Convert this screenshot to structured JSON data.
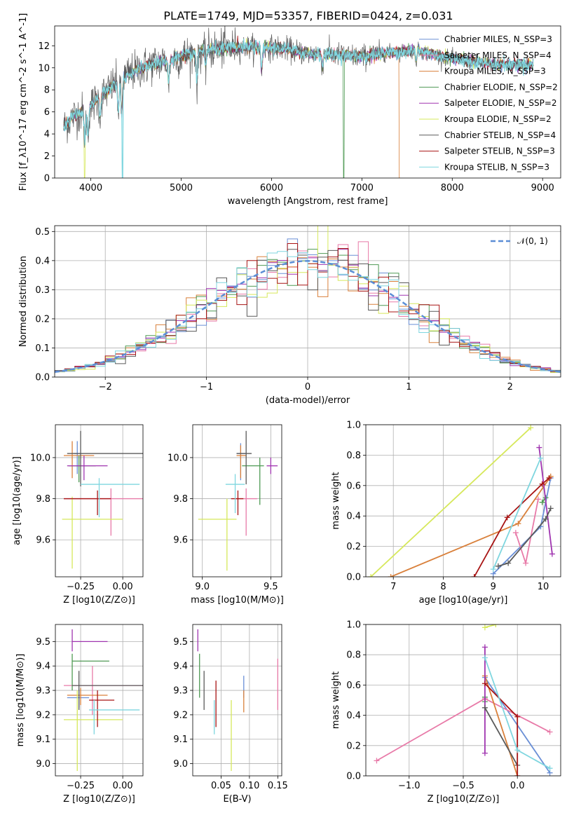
{
  "figure": {
    "title": "PLATE=1749, MJD=53357, FIBERID=0424, z=0.031"
  },
  "series_names": [
    "Chabrier MILES, N_SSP=3",
    "Salpeter MILES, N_SSP=4",
    "Kroupa MILES, N_SSP=3",
    "Chabrier ELODIE, N_SSP=2",
    "Salpeter ELODIE, N_SSP=2",
    "Kroupa ELODIE, N_SSP=2",
    "Chabrier STELIB, N_SSP=4",
    "Salpeter STELIB, N_SSP=3",
    "Kroupa STELIB, N_SSP=3"
  ],
  "series_colors": [
    "#6a8fd6",
    "#e87aa8",
    "#d9803b",
    "#4f9a54",
    "#a035b0",
    "#d6e85b",
    "#5a5a5a",
    "#a81414",
    "#7fd6df"
  ],
  "chart_data": [
    {
      "id": "spectrum",
      "type": "line",
      "title": "PLATE=1749, MJD=53357, FIBERID=0424, z=0.031",
      "xlabel": "wavelength [Angstrom, rest frame]",
      "ylabel": "Flux [f_λ10^-17 erg cm^-2 s^-1 A^-1]",
      "xlim": [
        3600,
        9200
      ],
      "ylim": [
        0,
        13.8
      ],
      "xticks": [
        "4000",
        "5000",
        "6000",
        "7000",
        "8000",
        "9000"
      ],
      "yticks": [
        "0",
        "2",
        "4",
        "6",
        "8",
        "10",
        "12"
      ],
      "x_range_data": [
        3700,
        8900
      ],
      "continuum_anchors": {
        "x": [
          3700,
          3800,
          3950,
          4100,
          4300,
          4500,
          4700,
          5000,
          5200,
          5500,
          5800,
          6100,
          6400,
          6700,
          7000,
          7300,
          7600,
          8000,
          8500,
          8900
        ],
        "y": [
          4.6,
          5.6,
          6.2,
          7.3,
          8.8,
          9.8,
          10.4,
          11.0,
          11.5,
          11.8,
          11.9,
          11.8,
          11.3,
          11.2,
          11.0,
          11.4,
          11.6,
          10.8,
          10.3,
          10.3
        ]
      },
      "absorption_lines": [
        {
          "x": 3934,
          "depth": 0.45
        },
        {
          "x": 3969,
          "depth": 0.4
        },
        {
          "x": 4102,
          "depth": 0.25
        },
        {
          "x": 4305,
          "depth": 0.3
        },
        {
          "x": 4341,
          "depth": 0.35
        },
        {
          "x": 4861,
          "depth": 0.2
        },
        {
          "x": 5175,
          "depth": 0.25
        },
        {
          "x": 5270,
          "depth": 0.12
        },
        {
          "x": 5890,
          "depth": 0.18
        },
        {
          "x": 6563,
          "depth": 0.1
        },
        {
          "x": 7600,
          "depth": 0.08
        }
      ],
      "dropouts": [
        {
          "series": 5,
          "x": 3930
        },
        {
          "series": 8,
          "x": 4350
        },
        {
          "series": 3,
          "x": 6800
        },
        {
          "series": 2,
          "x": 7420
        }
      ],
      "legend": "right"
    },
    {
      "id": "residuals",
      "type": "bar",
      "xlabel": "(data-model)/error",
      "ylabel": "Normed distribution",
      "xlim": [
        -2.5,
        2.5
      ],
      "ylim": [
        0,
        0.52
      ],
      "xticks": [
        "−2",
        "−1",
        "0",
        "1",
        "2"
      ],
      "yticks": [
        "0.0",
        "0.1",
        "0.2",
        "0.3",
        "0.4",
        "0.5"
      ],
      "bin_width": 0.1,
      "reference_curve": "N(0,1)",
      "legend_label": "𝒩(0, 1)",
      "legend": "top-right"
    },
    {
      "id": "age-vs-Z",
      "type": "scatter",
      "xlabel": "Z [log10(Z/Z⊙)]",
      "ylabel": "age  [log10(age/yr)]",
      "xlim": [
        -0.4,
        0.12
      ],
      "ylim": [
        9.42,
        10.16
      ],
      "xticks": [
        "−0.25",
        "0.00"
      ],
      "yticks": [
        "9.6",
        "9.8",
        "10.0"
      ],
      "points": [
        {
          "s": 0,
          "x": -0.27,
          "y": 10.02,
          "xl": -0.29,
          "xh": -0.25,
          "yl": 9.92,
          "yh": 10.08
        },
        {
          "s": 1,
          "x": -0.07,
          "y": 9.8,
          "xl": -0.35,
          "xh": 0.12,
          "yl": 9.62,
          "yh": 9.85
        },
        {
          "s": 2,
          "x": -0.3,
          "y": 10.01,
          "xl": -0.35,
          "xh": -0.17,
          "yl": 9.9,
          "yh": 10.08
        },
        {
          "s": 3,
          "x": -0.26,
          "y": 9.96,
          "xl": -0.32,
          "xh": -0.16,
          "yl": 9.88,
          "yh": 10.01
        },
        {
          "s": 4,
          "x": -0.23,
          "y": 9.96,
          "xl": -0.33,
          "xh": -0.09,
          "yl": 9.89,
          "yh": 10.01
        },
        {
          "s": 5,
          "x": -0.3,
          "y": 9.7,
          "xl": -0.36,
          "xh": 0.0,
          "yl": 9.46,
          "yh": 9.81
        },
        {
          "s": 6,
          "x": -0.25,
          "y": 10.02,
          "xl": -0.33,
          "xh": 0.12,
          "yl": 9.86,
          "yh": 10.13
        },
        {
          "s": 7,
          "x": -0.15,
          "y": 9.8,
          "xl": -0.35,
          "xh": -0.07,
          "yl": 9.72,
          "yh": 9.84
        },
        {
          "s": 8,
          "x": -0.14,
          "y": 9.87,
          "xl": -0.25,
          "xh": 0.1,
          "yl": 9.71,
          "yh": 9.9
        }
      ]
    },
    {
      "id": "age-vs-mass",
      "type": "scatter",
      "xlabel": "mass [log10(M/M⊙)]",
      "ylabel": "",
      "xlim": [
        8.93,
        9.58
      ],
      "ylim": [
        9.42,
        10.16
      ],
      "xticks": [
        "9.0",
        "9.5"
      ],
      "yticks": [
        "9.6",
        "9.8",
        "10.0"
      ],
      "points": [
        {
          "s": 0,
          "x": 9.28,
          "y": 10.02,
          "xl": 9.25,
          "xh": 9.32,
          "yl": 9.89,
          "yh": 10.07
        },
        {
          "s": 1,
          "x": 9.32,
          "y": 9.8,
          "xl": 9.25,
          "xh": 9.4,
          "yl": 9.62,
          "yh": 9.85
        },
        {
          "s": 2,
          "x": 9.28,
          "y": 10.01,
          "xl": 9.25,
          "xh": 9.32,
          "yl": 9.9,
          "yh": 10.06
        },
        {
          "s": 3,
          "x": 9.42,
          "y": 9.96,
          "xl": 9.29,
          "xh": 9.45,
          "yl": 9.77,
          "yh": 10.0
        },
        {
          "s": 4,
          "x": 9.5,
          "y": 9.96,
          "xl": 9.47,
          "xh": 9.55,
          "yl": 9.92,
          "yh": 10.0
        },
        {
          "s": 5,
          "x": 9.18,
          "y": 9.7,
          "xl": 8.97,
          "xh": 9.25,
          "yl": 9.45,
          "yh": 9.8
        },
        {
          "s": 6,
          "x": 9.32,
          "y": 10.02,
          "xl": 9.25,
          "xh": 9.36,
          "yl": 9.87,
          "yh": 10.13
        },
        {
          "s": 7,
          "x": 9.26,
          "y": 9.8,
          "xl": 9.21,
          "xh": 9.3,
          "yl": 9.72,
          "yh": 9.84
        },
        {
          "s": 8,
          "x": 9.24,
          "y": 9.87,
          "xl": 9.17,
          "xh": 9.31,
          "yl": 9.73,
          "yh": 9.92
        }
      ]
    },
    {
      "id": "weight-vs-age",
      "type": "line",
      "xlabel": "age  [log10(age/yr)]",
      "ylabel": "mass weight",
      "xlim": [
        6.45,
        10.35
      ],
      "ylim": [
        0,
        1.0
      ],
      "xticks": [
        "7",
        "8",
        "9",
        "10"
      ],
      "yticks": [
        "0.0",
        "0.2",
        "0.4",
        "0.6",
        "0.8",
        "1.0"
      ],
      "series": [
        {
          "s": 0,
          "x": [
            9.0,
            9.95,
            10.15
          ],
          "y": [
            0.02,
            0.33,
            0.65
          ]
        },
        {
          "s": 1,
          "x": [
            9.45,
            9.65,
            9.9
          ],
          "y": [
            0.29,
            0.09,
            0.51
          ]
        },
        {
          "s": 2,
          "x": [
            6.95,
            9.5,
            10.15
          ],
          "y": [
            0.0,
            0.35,
            0.66
          ]
        },
        {
          "s": 3,
          "x": [
            9.98,
            10.05
          ],
          "y": [
            0.49,
            0.52
          ]
        },
        {
          "s": 4,
          "x": [
            9.92,
            10.18
          ],
          "y": [
            0.85,
            0.15
          ]
        },
        {
          "s": 5,
          "x": [
            6.55,
            9.75
          ],
          "y": [
            0.0,
            0.98
          ]
        },
        {
          "s": 6,
          "x": [
            9.1,
            9.3,
            10.05,
            10.15
          ],
          "y": [
            0.07,
            0.09,
            0.38,
            0.45
          ]
        },
        {
          "s": 7,
          "x": [
            8.62,
            9.28,
            9.98,
            10.12
          ],
          "y": [
            0.0,
            0.39,
            0.61,
            0.65
          ]
        },
        {
          "s": 8,
          "x": [
            9.0,
            9.95
          ],
          "y": [
            0.05,
            0.78
          ]
        }
      ]
    },
    {
      "id": "mass-vs-Z",
      "type": "scatter",
      "xlabel": "Z [log10(Z/Z⊙)]",
      "ylabel": "mass [log10(M/M⊙)]",
      "xlim": [
        -0.4,
        0.12
      ],
      "ylim": [
        8.95,
        9.57
      ],
      "xticks": [
        "−0.25",
        "0.00"
      ],
      "yticks": [
        "9.0",
        "9.1",
        "9.2",
        "9.3",
        "9.4",
        "9.5"
      ],
      "points": [
        {
          "s": 0,
          "x": -0.26,
          "y": 9.27,
          "xl": -0.33,
          "xh": -0.2,
          "yl": 9.23,
          "yh": 9.3
        },
        {
          "s": 1,
          "x": -0.18,
          "y": 9.32,
          "xl": -0.35,
          "xh": 0.12,
          "yl": 9.2,
          "yh": 9.4
        },
        {
          "s": 2,
          "x": -0.25,
          "y": 9.28,
          "xl": -0.33,
          "xh": -0.09,
          "yl": 9.24,
          "yh": 9.31
        },
        {
          "s": 3,
          "x": -0.3,
          "y": 9.42,
          "xl": -0.3,
          "xh": -0.08,
          "yl": 9.3,
          "yh": 9.45
        },
        {
          "s": 4,
          "x": -0.3,
          "y": 9.5,
          "xl": -0.3,
          "xh": -0.09,
          "yl": 9.46,
          "yh": 9.55
        },
        {
          "s": 5,
          "x": -0.27,
          "y": 9.18,
          "xl": -0.35,
          "xh": 0.0,
          "yl": 8.97,
          "yh": 9.3
        },
        {
          "s": 6,
          "x": -0.26,
          "y": 9.32,
          "xl": -0.3,
          "xh": 0.12,
          "yl": 9.22,
          "yh": 9.38
        },
        {
          "s": 7,
          "x": -0.15,
          "y": 9.26,
          "xl": -0.2,
          "xh": -0.05,
          "yl": 9.15,
          "yh": 9.3
        },
        {
          "s": 8,
          "x": -0.17,
          "y": 9.22,
          "xl": -0.2,
          "xh": 0.1,
          "yl": 9.12,
          "yh": 9.26
        }
      ]
    },
    {
      "id": "mass-vs-ebv",
      "type": "scatter",
      "xlabel": "E(B-V)",
      "ylabel": "",
      "xlim": [
        0.0,
        0.157
      ],
      "ylim": [
        8.95,
        9.57
      ],
      "xticks": [
        "0.05",
        "0.10",
        "0.15"
      ],
      "yticks": [
        "9.0",
        "9.1",
        "9.2",
        "9.3",
        "9.4",
        "9.5"
      ],
      "points": [
        {
          "s": 0,
          "x": 0.09,
          "yl": 9.27,
          "yh": 9.36
        },
        {
          "s": 1,
          "x": 0.15,
          "yl": 9.22,
          "yh": 9.43
        },
        {
          "s": 2,
          "x": 0.09,
          "yl": 9.21,
          "yh": 9.3
        },
        {
          "s": 3,
          "x": 0.012,
          "yl": 9.27,
          "yh": 9.45
        },
        {
          "s": 4,
          "x": 0.009,
          "yl": 9.46,
          "yh": 9.55
        },
        {
          "s": 5,
          "x": 0.068,
          "yl": 8.97,
          "yh": 9.26
        },
        {
          "s": 6,
          "x": 0.02,
          "yl": 9.22,
          "yh": 9.38
        },
        {
          "s": 7,
          "x": 0.041,
          "yl": 9.15,
          "yh": 9.34
        },
        {
          "s": 8,
          "x": 0.038,
          "yl": 9.12,
          "yh": 9.26
        }
      ]
    },
    {
      "id": "weight-vs-Z",
      "type": "line",
      "xlabel": "Z [log10(Z/Z⊙)]",
      "ylabel": "mass weight",
      "xlim": [
        -1.4,
        0.4
      ],
      "ylim": [
        0,
        1.0
      ],
      "xticks": [
        "−1.0",
        "−0.5",
        "0.0"
      ],
      "yticks": [
        "0.0",
        "0.2",
        "0.4",
        "0.6",
        "0.8",
        "1.0"
      ],
      "series": [
        {
          "s": 0,
          "x": [
            -0.3,
            0.3
          ],
          "y": [
            0.65,
            0.02
          ]
        },
        {
          "s": 1,
          "x": [
            -1.3,
            -0.3,
            0.3
          ],
          "y": [
            0.1,
            0.51,
            0.29
          ]
        },
        {
          "s": 2,
          "x": [
            -0.3,
            0.0
          ],
          "y": [
            0.66,
            0.0
          ]
        },
        {
          "s": 3,
          "x": [
            -0.3,
            -0.3
          ],
          "y": [
            0.49,
            0.52
          ]
        },
        {
          "s": 4,
          "x": [
            -0.3,
            -0.3
          ],
          "y": [
            0.85,
            0.15
          ]
        },
        {
          "s": 5,
          "x": [
            -0.3,
            -0.2
          ],
          "y": [
            0.98,
            1.0
          ]
        },
        {
          "s": 6,
          "x": [
            -0.3,
            0.0
          ],
          "y": [
            0.45,
            0.07
          ]
        },
        {
          "s": 7,
          "x": [
            -0.3,
            0.0,
            0.0
          ],
          "y": [
            0.61,
            0.39,
            0.0
          ]
        },
        {
          "s": 8,
          "x": [
            -0.3,
            0.0,
            0.3
          ],
          "y": [
            0.78,
            0.17,
            0.05
          ]
        }
      ]
    }
  ]
}
